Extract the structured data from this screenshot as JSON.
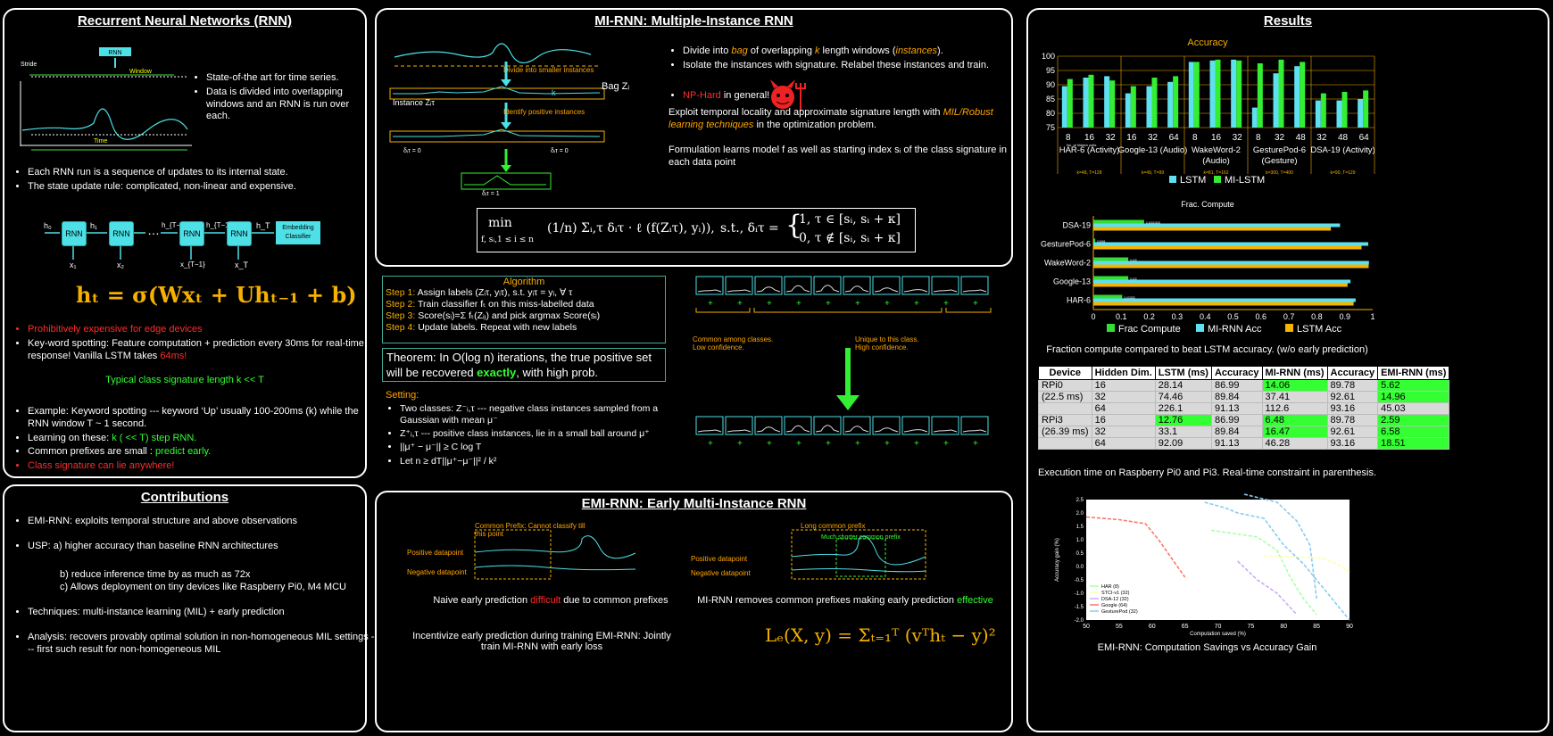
{
  "rnn": {
    "title": "Recurrent Neural Networks (RNN)",
    "fig_rnn": "RNN",
    "fig_stride": "Stride",
    "fig_window": "Window",
    "fig_time": "Time",
    "bullets1": [
      "State-of-the art for time series.",
      "Data is divided into overlapping windows and an RNN is run over each."
    ],
    "bullets2": [
      "Each RNN run is a sequence of updates to its internal state.",
      "The state update rule: complicated, non-linear and expensive."
    ],
    "chain": {
      "cell": "RNN",
      "dots": "…",
      "embed": "Embedding Classifier",
      "h0": "h₀",
      "h1": "h₁",
      "hT1": "h_{T−2}",
      "hT2": "h_{T−1}",
      "hT": "h_T",
      "x1": "x₁",
      "x2": "x₂",
      "xT1": "x_{T−1}",
      "xT": "x_T"
    },
    "equation": "hₜ =  σ(Wxₜ + Uhₜ₋₁ + b)",
    "red1": "Prohibitively expensive for edge devices",
    "kws_a": "Key-word spotting: Feature computation + prediction every 30ms for real-time response! Vanilla LSTM takes ",
    "kws_b": "64ms!",
    "typical": "Typical class signature length k << T",
    "ex": "Example: Keyword spotting --- keyword ‘Up’ usually 100-200ms (k) while the RNN window T  ~ 1 second.",
    "learn_a": "Learning on these: ",
    "learn_b": "k ( << T) step RNN.",
    "prefix_a": "Common prefixes are small : ",
    "prefix_b": "predict early.",
    "sig": "Class signature can lie anywhere!"
  },
  "contrib": {
    "title": "Contributions",
    "c1": "EMI-RNN: exploits temporal structure and above observations",
    "c2a": "USP: a) higher accuracy than baseline RNN architectures",
    "c2b": "b) reduce inference time by as much as 72x",
    "c2c": "c) Allows deployment on tiny devices like Raspberry Pi0, M4 MCU",
    "c3": "Techniques: multi-instance learning (MIL) + early prediction",
    "c4": "Analysis: recovers provably optimal solution in non-homogeneous MIL settings --- first such result for non-homogeneous MIL"
  },
  "mirnn": {
    "title": "MI-RNN: Multiple-Instance RNN",
    "fig_divide": "Divide into smaller instances",
    "fig_identify": "Identify positive instances",
    "fig_k": "k",
    "fig_bag": "Bag Zᵢ",
    "fig_instance": "Instance Zᵢτ",
    "fig_d0a": "δᵢτ = 0",
    "fig_d0b": "δᵢτ = 0",
    "fig_d1": "δᵢτ = 1",
    "b1a": "Divide into ",
    "b1b": "bag",
    "b1c": " of overlapping ",
    "b1d": "k",
    "b1e": " length windows (",
    "b1f": "instances",
    "b1g": ").",
    "b2": "Isolate the instances with signature. Relabel these instances and train.",
    "np": "NP-Hard",
    "np2": " in general!",
    "p1a": "Exploit temporal locality and approximate signature length with ",
    "p1b": "MIL/Robust learning techniques",
    "p1c": " in the optimization problem.",
    "p2": "Formulation learns model f as well as starting index sᵢ of the class signature in each data point",
    "opt_min": "min",
    "opt_sub": "f, sᵢ,1 ≤ i ≤ n",
    "opt_body": "(1/n) Σᵢ,τ δᵢτ · ℓ (f(Zᵢτ), yᵢ)),",
    "opt_st": "s.t., δᵢτ =",
    "opt_c1": "1,      τ ∈ [sᵢ, sᵢ + κ]",
    "opt_c2": "0,      τ ∉ [sᵢ, sᵢ + κ]"
  },
  "algo": {
    "title": "Algorithm",
    "s1a": "Step 1:",
    "s1b": " Assign labels (Zᵢτ, yᵢτ), s.t. yᵢτ = yᵢ, ∀ τ",
    "s2a": "Step 2:",
    "s2b": " Train classifier fₜ on this miss-labelled data",
    "s3a": "Step 3:",
    "s3b": " Score(sᵢ)=Σ fₜ(Zᵢⱼ) and pick argmax Score(sᵢ)",
    "s4a": "Step 4:",
    "s4b": " Update labels. Repeat with new labels",
    "thm_a": "Theorem: In O(log n)  iterations, the true positive set will be  recovered ",
    "thm_b": "exactly",
    "thm_c": ", with high prob.",
    "setting": "Setting:",
    "set1": "Two  classes: Z⁻ᵢ,τ --- negative class instances sampled from a Gaussian with mean μ⁻",
    "set2": "Z⁺ᵢ,τ --- positive class instances, lie in a small ball around μ⁺",
    "set3": "||μ⁺ − μ⁻|| ≥ C log T",
    "set4": "Let n ≥ dT||μ⁺−μ⁻||² / k²",
    "plus": "+",
    "common": "Common among classes. Low confidence.",
    "unique": "Unique to this class. High confidence."
  },
  "emi": {
    "title": "EMI-RNN: Early Multi-Instance RNN",
    "prefix_lbl": "Common Prefix: Cannot classify till this point",
    "long_lbl": "Long common prefix",
    "short_lbl": "Much shorter common prefix",
    "pos": "Positive datapoint",
    "neg": "Negative datapoint",
    "pos2": "Positive datapoint",
    "neg2": "Negative datapoint",
    "cap1a": "Naive early prediction ",
    "cap1b": "difficult",
    "cap1c": " due to common prefixes",
    "cap2a": "MI-RNN removes common prefixes making early prediction ",
    "cap2b": "effective",
    "incent": "Incentivize early prediction during training EMI-RNN: Jointly train MI-RNN with early loss",
    "loss": "Lₑ(X, y) = Σₜ₌₁ᵀ (vᵀhₜ − y)²"
  },
  "results": {
    "title": "Results",
    "acc_caption": "",
    "frac_caption": "Fraction compute compared to beat LSTM accuracy.  (w/o early prediction)",
    "table_caption": "Execution time on Raspberry Pi0 and Pi3. Real-time constraint in parenthesis.",
    "gain_caption": "EMI-RNN: Computation Savings vs Accuracy Gain",
    "table": {
      "headers": [
        "Device",
        "Hidden Dim.",
        "LSTM (ms)",
        "Accuracy",
        "MI-RNN (ms)",
        "Accuracy",
        "EMI-RNN (ms)"
      ],
      "rows": [
        [
          "RPi0",
          "16",
          "28.14",
          "86.99",
          "14.06",
          "89.78",
          "5.62"
        ],
        [
          "(22.5 ms)",
          "32",
          "74.46",
          "89.84",
          "37.41",
          "92.61",
          "14.96"
        ],
        [
          "",
          "64",
          "226.1",
          "91.13",
          "112.6",
          "93.16",
          "45.03"
        ],
        [
          "RPi3",
          "16",
          "12.76",
          "86.99",
          "6.48",
          "89.78",
          "2.59"
        ],
        [
          "(26.39 ms)",
          "32",
          "33.1",
          "89.84",
          "16.47",
          "92.61",
          "6.58"
        ],
        [
          "",
          "64",
          "92.09",
          "91.13",
          "46.28",
          "93.16",
          "18.51"
        ]
      ],
      "highlight": [
        [
          0,
          4
        ],
        [
          0,
          6
        ],
        [
          1,
          6
        ],
        [
          3,
          2
        ],
        [
          3,
          4
        ],
        [
          3,
          6
        ],
        [
          4,
          4
        ],
        [
          4,
          6
        ],
        [
          5,
          6
        ]
      ]
    }
  },
  "chart_data": [
    {
      "type": "bar",
      "title": "Accuracy",
      "ylim": [
        75,
        100
      ],
      "yticks": [
        75,
        80,
        85,
        90,
        95,
        100
      ],
      "groups": [
        {
          "name": "HAR-6 (Activity)",
          "sub": "k=48, T=128",
          "categories": [
            "8",
            "16",
            "32"
          ],
          "lstm": [
            89.5,
            92.5,
            93
          ],
          "mi": [
            92,
            93.5,
            91.5
          ]
        },
        {
          "name": "Google-13 (Audio)",
          "sub": "k=49, T=99",
          "categories": [
            "16",
            "32",
            "64"
          ],
          "lstm": [
            87,
            89.5,
            91
          ],
          "mi": [
            89.5,
            92.5,
            93
          ]
        },
        {
          "name": "WakeWord-2 (Audio)",
          "sub": "k=81, T=162",
          "categories": [
            "8",
            "16",
            "32"
          ],
          "lstm": [
            98,
            98.5,
            98.8
          ],
          "mi": [
            98,
            98.8,
            98.5
          ]
        },
        {
          "name": "GesturePod-6 (Gesture)",
          "sub": "k=300, T=400",
          "categories": [
            "8",
            "32",
            "48"
          ],
          "lstm": [
            82,
            94,
            96.5
          ],
          "mi": [
            97.5,
            98.8,
            98
          ]
        },
        {
          "name": "DSA-19 (Activity)",
          "sub": "k=90, T=129",
          "categories": [
            "32",
            "48",
            "64"
          ],
          "lstm": [
            84.5,
            84.5,
            85
          ],
          "mi": [
            87,
            87.5,
            88
          ]
        }
      ],
      "xnote": "No. of hidden units",
      "series": [
        {
          "name": "LSTM",
          "color": "#5ee0f0"
        },
        {
          "name": "MI-LSTM",
          "color": "#33ee33"
        }
      ]
    },
    {
      "type": "bar",
      "title": "Frac. Compute",
      "xlim": [
        0,
        1
      ],
      "xticks": [
        "0",
        "0.1",
        "0.2",
        "0.3",
        "0.4",
        "0.5",
        "0.6",
        "0.7",
        "0.8",
        "0.9",
        "1"
      ],
      "categories": [
        "DSA-19",
        "GesturePod-6",
        "WakeWord-2",
        "Google-13",
        "HAR-6"
      ],
      "series": [
        {
          "name": "Frac Compute",
          "color": "#33dd33",
          "values": [
            0.1818,
            0.0066,
            0.125,
            0.125,
            0.1032
          ]
        },
        {
          "name": "MI-RNN Acc",
          "color": "#5ee0f0",
          "values": [
            0.8831,
            0.984,
            0.9866,
            0.9204,
            0.9389
          ]
        },
        {
          "name": "LSTM Acc",
          "color": "#f5b400",
          "values": [
            0.8501,
            0.96,
            0.9856,
            0.91,
            0.9316
          ]
        }
      ],
      "labels": [
        "0.18181818",
        "0.0066",
        "0.125",
        "0.125",
        "0.103205"
      ]
    },
    {
      "type": "line",
      "xlabel": "Computation saved (%)",
      "ylabel": "Accuracy gain (%)",
      "xlim": [
        50,
        90
      ],
      "ylim": [
        -2.0,
        2.5
      ],
      "xticks": [
        50,
        55,
        60,
        65,
        70,
        75,
        80,
        85,
        90
      ],
      "yticks": [
        "2.5",
        "2.0",
        "1.5",
        "1.0",
        "0.5",
        "0.0",
        "-0.5",
        "-1.0",
        "-1.5",
        "-2.0"
      ],
      "series": [
        {
          "name": "HAR (8)",
          "color": "#aaffaa",
          "x": [
            69,
            72,
            76,
            79,
            81,
            83,
            85
          ],
          "y": [
            1.35,
            1.25,
            1.1,
            0.6,
            -0.4,
            -1.2,
            -1.8
          ]
        },
        {
          "name": "STCI-v1 (32)",
          "color": "#ffffaa",
          "x": [
            77,
            80,
            83,
            86,
            88,
            90
          ],
          "y": [
            0.4,
            0.38,
            0.35,
            0.3,
            0.1,
            -0.2
          ]
        },
        {
          "name": "DSA-12 (32)",
          "color": "#ccaaff",
          "x": [
            73,
            76,
            79,
            82
          ],
          "y": [
            0.2,
            -0.5,
            -1.0,
            -1.8
          ]
        },
        {
          "name": "Google (64)",
          "color": "#ff7766",
          "x": [
            50,
            55,
            59,
            61,
            63,
            65
          ],
          "y": [
            1.85,
            1.75,
            1.6,
            1.0,
            0.3,
            -0.4
          ]
        },
        {
          "name": "GesturePod (32)",
          "color": "#88ccee",
          "x": [
            74,
            79,
            82,
            84,
            85
          ],
          "y": [
            2.7,
            2.4,
            1.7,
            0.8,
            -1.2
          ]
        },
        {
          "name": "",
          "color": "#88ccee",
          "x": [
            68,
            71,
            73,
            77,
            80,
            83,
            86,
            88,
            90
          ],
          "y": [
            2.4,
            2.2,
            2.0,
            1.8,
            0.8,
            0.1,
            -0.8,
            -1.4,
            -2.0
          ]
        }
      ]
    }
  ]
}
